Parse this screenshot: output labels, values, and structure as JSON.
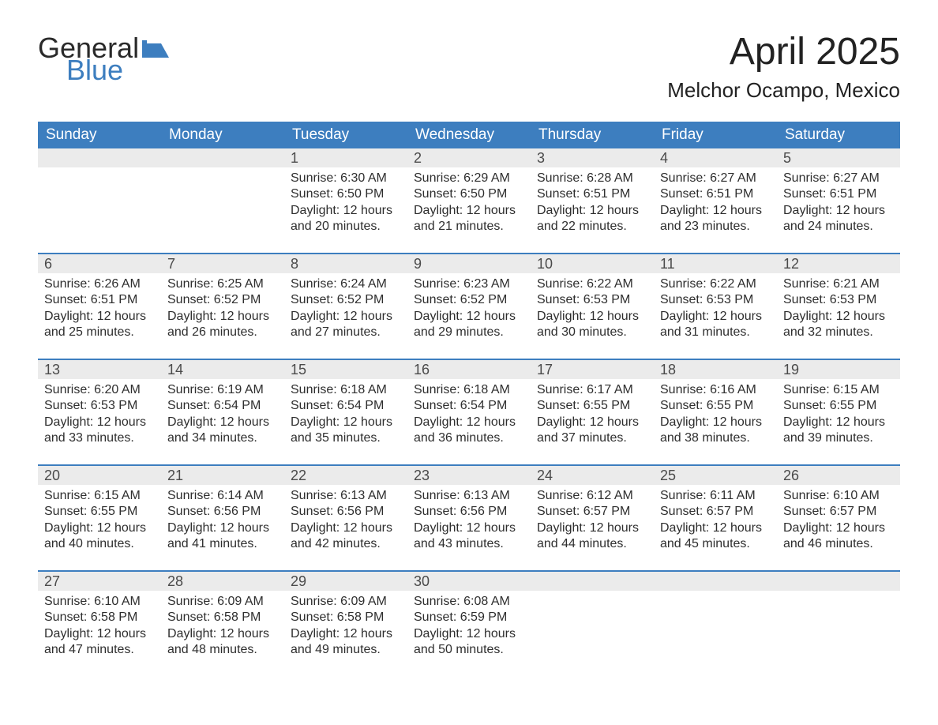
{
  "logo": {
    "line1": "General",
    "line2": "Blue"
  },
  "title": {
    "month": "April 2025",
    "location": "Melchor Ocampo, Mexico"
  },
  "colors": {
    "header_bg": "#3d7ebf",
    "header_text": "#ffffff",
    "daynum_bg": "#ebebeb",
    "rule": "#3d7ebf",
    "body_text": "#2e2e2e",
    "logo_blue": "#3d7ebf"
  },
  "daysOfWeek": [
    "Sunday",
    "Monday",
    "Tuesday",
    "Wednesday",
    "Thursday",
    "Friday",
    "Saturday"
  ],
  "weeks": [
    [
      {
        "n": "",
        "sunrise": "",
        "sunset": "",
        "daylight": ""
      },
      {
        "n": "",
        "sunrise": "",
        "sunset": "",
        "daylight": ""
      },
      {
        "n": "1",
        "sunrise": "Sunrise: 6:30 AM",
        "sunset": "Sunset: 6:50 PM",
        "daylight": "Daylight: 12 hours and 20 minutes."
      },
      {
        "n": "2",
        "sunrise": "Sunrise: 6:29 AM",
        "sunset": "Sunset: 6:50 PM",
        "daylight": "Daylight: 12 hours and 21 minutes."
      },
      {
        "n": "3",
        "sunrise": "Sunrise: 6:28 AM",
        "sunset": "Sunset: 6:51 PM",
        "daylight": "Daylight: 12 hours and 22 minutes."
      },
      {
        "n": "4",
        "sunrise": "Sunrise: 6:27 AM",
        "sunset": "Sunset: 6:51 PM",
        "daylight": "Daylight: 12 hours and 23 minutes."
      },
      {
        "n": "5",
        "sunrise": "Sunrise: 6:27 AM",
        "sunset": "Sunset: 6:51 PM",
        "daylight": "Daylight: 12 hours and 24 minutes."
      }
    ],
    [
      {
        "n": "6",
        "sunrise": "Sunrise: 6:26 AM",
        "sunset": "Sunset: 6:51 PM",
        "daylight": "Daylight: 12 hours and 25 minutes."
      },
      {
        "n": "7",
        "sunrise": "Sunrise: 6:25 AM",
        "sunset": "Sunset: 6:52 PM",
        "daylight": "Daylight: 12 hours and 26 minutes."
      },
      {
        "n": "8",
        "sunrise": "Sunrise: 6:24 AM",
        "sunset": "Sunset: 6:52 PM",
        "daylight": "Daylight: 12 hours and 27 minutes."
      },
      {
        "n": "9",
        "sunrise": "Sunrise: 6:23 AM",
        "sunset": "Sunset: 6:52 PM",
        "daylight": "Daylight: 12 hours and 29 minutes."
      },
      {
        "n": "10",
        "sunrise": "Sunrise: 6:22 AM",
        "sunset": "Sunset: 6:53 PM",
        "daylight": "Daylight: 12 hours and 30 minutes."
      },
      {
        "n": "11",
        "sunrise": "Sunrise: 6:22 AM",
        "sunset": "Sunset: 6:53 PM",
        "daylight": "Daylight: 12 hours and 31 minutes."
      },
      {
        "n": "12",
        "sunrise": "Sunrise: 6:21 AM",
        "sunset": "Sunset: 6:53 PM",
        "daylight": "Daylight: 12 hours and 32 minutes."
      }
    ],
    [
      {
        "n": "13",
        "sunrise": "Sunrise: 6:20 AM",
        "sunset": "Sunset: 6:53 PM",
        "daylight": "Daylight: 12 hours and 33 minutes."
      },
      {
        "n": "14",
        "sunrise": "Sunrise: 6:19 AM",
        "sunset": "Sunset: 6:54 PM",
        "daylight": "Daylight: 12 hours and 34 minutes."
      },
      {
        "n": "15",
        "sunrise": "Sunrise: 6:18 AM",
        "sunset": "Sunset: 6:54 PM",
        "daylight": "Daylight: 12 hours and 35 minutes."
      },
      {
        "n": "16",
        "sunrise": "Sunrise: 6:18 AM",
        "sunset": "Sunset: 6:54 PM",
        "daylight": "Daylight: 12 hours and 36 minutes."
      },
      {
        "n": "17",
        "sunrise": "Sunrise: 6:17 AM",
        "sunset": "Sunset: 6:55 PM",
        "daylight": "Daylight: 12 hours and 37 minutes."
      },
      {
        "n": "18",
        "sunrise": "Sunrise: 6:16 AM",
        "sunset": "Sunset: 6:55 PM",
        "daylight": "Daylight: 12 hours and 38 minutes."
      },
      {
        "n": "19",
        "sunrise": "Sunrise: 6:15 AM",
        "sunset": "Sunset: 6:55 PM",
        "daylight": "Daylight: 12 hours and 39 minutes."
      }
    ],
    [
      {
        "n": "20",
        "sunrise": "Sunrise: 6:15 AM",
        "sunset": "Sunset: 6:55 PM",
        "daylight": "Daylight: 12 hours and 40 minutes."
      },
      {
        "n": "21",
        "sunrise": "Sunrise: 6:14 AM",
        "sunset": "Sunset: 6:56 PM",
        "daylight": "Daylight: 12 hours and 41 minutes."
      },
      {
        "n": "22",
        "sunrise": "Sunrise: 6:13 AM",
        "sunset": "Sunset: 6:56 PM",
        "daylight": "Daylight: 12 hours and 42 minutes."
      },
      {
        "n": "23",
        "sunrise": "Sunrise: 6:13 AM",
        "sunset": "Sunset: 6:56 PM",
        "daylight": "Daylight: 12 hours and 43 minutes."
      },
      {
        "n": "24",
        "sunrise": "Sunrise: 6:12 AM",
        "sunset": "Sunset: 6:57 PM",
        "daylight": "Daylight: 12 hours and 44 minutes."
      },
      {
        "n": "25",
        "sunrise": "Sunrise: 6:11 AM",
        "sunset": "Sunset: 6:57 PM",
        "daylight": "Daylight: 12 hours and 45 minutes."
      },
      {
        "n": "26",
        "sunrise": "Sunrise: 6:10 AM",
        "sunset": "Sunset: 6:57 PM",
        "daylight": "Daylight: 12 hours and 46 minutes."
      }
    ],
    [
      {
        "n": "27",
        "sunrise": "Sunrise: 6:10 AM",
        "sunset": "Sunset: 6:58 PM",
        "daylight": "Daylight: 12 hours and 47 minutes."
      },
      {
        "n": "28",
        "sunrise": "Sunrise: 6:09 AM",
        "sunset": "Sunset: 6:58 PM",
        "daylight": "Daylight: 12 hours and 48 minutes."
      },
      {
        "n": "29",
        "sunrise": "Sunrise: 6:09 AM",
        "sunset": "Sunset: 6:58 PM",
        "daylight": "Daylight: 12 hours and 49 minutes."
      },
      {
        "n": "30",
        "sunrise": "Sunrise: 6:08 AM",
        "sunset": "Sunset: 6:59 PM",
        "daylight": "Daylight: 12 hours and 50 minutes."
      },
      {
        "n": "",
        "sunrise": "",
        "sunset": "",
        "daylight": ""
      },
      {
        "n": "",
        "sunrise": "",
        "sunset": "",
        "daylight": ""
      },
      {
        "n": "",
        "sunrise": "",
        "sunset": "",
        "daylight": ""
      }
    ]
  ]
}
